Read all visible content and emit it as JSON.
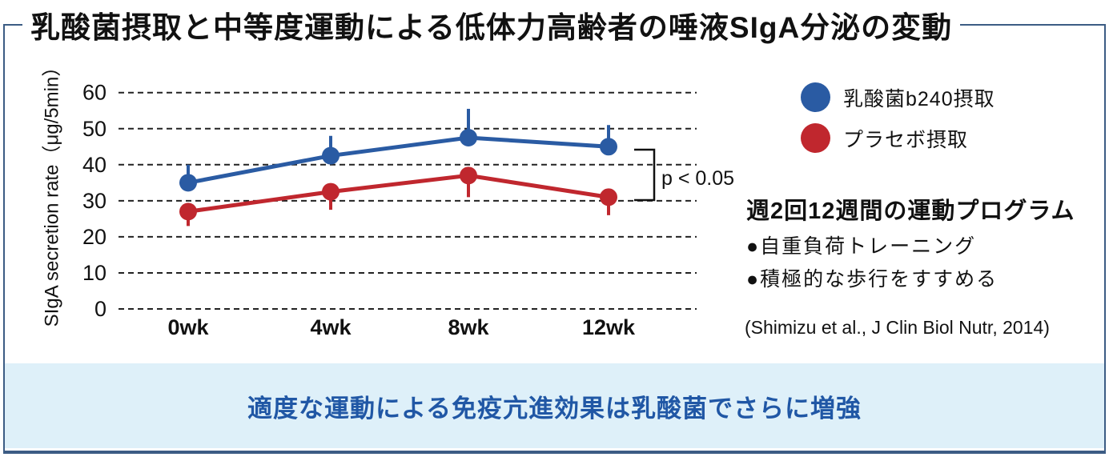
{
  "title": "乳酸菌摂取と中等度運動による低体力高齢者の唾液SIgA分泌の変動",
  "colors": {
    "blue": "#2a5ba3",
    "red": "#c0272e",
    "border": "#3c5c84",
    "banner_bg": "#def0f9",
    "banner_text": "#2057a5",
    "grid": "#222222",
    "text": "#111111"
  },
  "chart_data": {
    "type": "line",
    "categories": [
      "0wk",
      "4wk",
      "8wk",
      "12wk"
    ],
    "series": [
      {
        "name": "乳酸菌b240摂取",
        "color_key": "blue",
        "values": [
          35,
          42.5,
          47.5,
          45
        ],
        "error_up": [
          5,
          5.5,
          8,
          6
        ],
        "error_down": [
          0,
          0,
          0,
          0
        ]
      },
      {
        "name": "プラセボ摂取",
        "color_key": "red",
        "values": [
          27,
          32.5,
          37,
          31
        ],
        "error_up": [
          0,
          0,
          0,
          0
        ],
        "error_down": [
          4,
          5,
          6,
          5
        ]
      }
    ],
    "ylabel": "SIgA secretion rate（μg/5min）",
    "xlabel": "",
    "yticks": [
      0,
      10,
      20,
      30,
      40,
      50,
      60
    ],
    "ylim": [
      0,
      64
    ],
    "grid": "horizontal-dashed",
    "legend_position": "top-right",
    "annotation": "p < 0.05"
  },
  "legend": {
    "items": [
      {
        "label": "乳酸菌b240摂取",
        "color_key": "blue"
      },
      {
        "label": "プラセボ摂取",
        "color_key": "red"
      }
    ]
  },
  "side_panel": {
    "heading": "週2回12週間の運動プログラム",
    "bullets": [
      "●自重負荷トレーニング",
      "●積極的な歩行をすすめる"
    ],
    "citation": "(Shimizu et al., J Clin Biol Nutr, 2014)"
  },
  "banner": {
    "text": "適度な運動による免疫亢進効果は乳酸菌でさらに増強"
  }
}
